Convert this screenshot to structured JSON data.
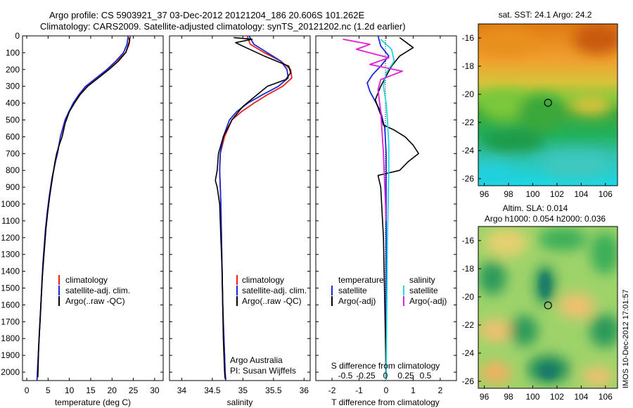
{
  "figure": {
    "title_line1": "Argo profile: CS 5903921_37 03-Dec-2012 20121204_186 20.606S 101.262E",
    "title_line2": "Climatology: CARS2009. Satellite-adjusted climatology: synTS_20121202.nc (1.2d earlier)",
    "timestamp": "IMOS 10-Dec-2012 17:01:57"
  },
  "colors": {
    "climatology": "#e8231f",
    "satellite": "#1a2bd6",
    "argo": "#000000",
    "s_satellite": "#1fd8e0",
    "s_argo": "#e020d8"
  },
  "chart_data": [
    {
      "id": "temperature",
      "type": "line",
      "xlabel": "temperature (deg C)",
      "xlim": [
        -1,
        32
      ],
      "xticks": [
        0,
        5,
        10,
        15,
        20,
        25,
        30
      ],
      "xticklabels": [
        "0",
        "5",
        "10",
        "15",
        "20",
        "25",
        "30"
      ],
      "ylim": [
        0,
        2050
      ],
      "yticks": [
        0,
        100,
        200,
        300,
        400,
        500,
        600,
        700,
        800,
        900,
        1000,
        1100,
        1200,
        1300,
        1400,
        1500,
        1600,
        1700,
        1800,
        1900,
        2000
      ],
      "legend": [
        "climatology",
        "satellite-adj. clim.",
        "Argo(..raw -QC)"
      ],
      "series": [
        {
          "name": "climatology",
          "color_key": "climatology",
          "x": [
            24.3,
            24.0,
            23.2,
            21.0,
            19.0,
            16.5,
            14.0,
            12.3,
            11.0,
            9.9,
            9.0,
            7.9,
            7.2,
            6.7,
            5.9,
            5.3,
            4.8,
            4.4,
            4.1,
            3.8,
            3.6,
            3.4,
            3.2,
            3.0,
            2.8,
            2.6,
            2.4
          ],
          "y": [
            0,
            50,
            100,
            150,
            200,
            250,
            300,
            350,
            400,
            450,
            500,
            600,
            700,
            750,
            850,
            950,
            1050,
            1150,
            1250,
            1350,
            1450,
            1550,
            1650,
            1750,
            1850,
            1950,
            2050
          ]
        },
        {
          "name": "satellite-adj. clim.",
          "color_key": "satellite",
          "x": [
            23.8,
            23.5,
            22.7,
            20.9,
            18.8,
            16.3,
            13.8,
            12.2,
            10.9,
            9.9,
            9.0,
            7.9,
            7.2,
            6.7,
            5.9,
            5.3,
            4.8,
            4.4,
            4.1,
            3.8,
            3.6,
            3.4,
            3.2,
            3.0,
            2.8,
            2.6,
            2.4
          ],
          "y": [
            0,
            50,
            100,
            150,
            200,
            250,
            300,
            350,
            400,
            450,
            500,
            600,
            700,
            750,
            850,
            950,
            1050,
            1150,
            1250,
            1350,
            1450,
            1550,
            1650,
            1750,
            1850,
            1950,
            2050
          ]
        },
        {
          "name": "Argo(..raw -QC)",
          "color_key": "argo",
          "x": [
            24.0,
            24.1,
            23.6,
            23.2,
            21.5,
            19.3,
            16.8,
            14.3,
            12.5,
            11.2,
            10.0,
            9.0,
            8.3,
            7.6,
            7.0,
            6.6,
            6.0,
            5.4,
            4.9,
            4.5,
            4.2,
            3.9,
            3.6,
            3.4,
            3.2,
            3.0,
            2.8,
            2.7,
            2.6
          ],
          "y": [
            10,
            30,
            70,
            100,
            150,
            200,
            250,
            300,
            350,
            400,
            450,
            520,
            600,
            650,
            700,
            750,
            850,
            950,
            1050,
            1150,
            1250,
            1350,
            1450,
            1550,
            1650,
            1750,
            1850,
            1950,
            2030
          ]
        }
      ]
    },
    {
      "id": "salinity",
      "type": "line",
      "xlabel": "salinity",
      "xlim": [
        33.8,
        36.1
      ],
      "xticks": [
        34,
        34.5,
        35,
        35.5,
        36
      ],
      "xticklabels": [
        "34",
        "34.5",
        "35",
        "35.5",
        "36"
      ],
      "ylim": [
        0,
        2050
      ],
      "legend": [
        "climatology",
        "satellite-adj. clim.",
        "Argo(..raw -QC)"
      ],
      "annotation_line1": "Argo Australia",
      "annotation_line2": "PI: Susan Wijffels",
      "series": [
        {
          "name": "climatology",
          "color_key": "climatology",
          "x": [
            35.07,
            35.12,
            35.35,
            35.62,
            35.78,
            35.8,
            35.65,
            35.4,
            35.18,
            34.98,
            34.82,
            34.7,
            34.63,
            34.62,
            34.63,
            34.64,
            34.65,
            34.66,
            34.67,
            34.68,
            34.69,
            34.7,
            34.71,
            34.72
          ],
          "y": [
            0,
            50,
            100,
            150,
            200,
            250,
            300,
            350,
            400,
            450,
            500,
            600,
            700,
            800,
            900,
            1000,
            1200,
            1400,
            1600,
            1700,
            1800,
            1900,
            2000,
            2050
          ]
        },
        {
          "name": "satellite-adj. clim.",
          "color_key": "satellite",
          "x": [
            35.1,
            35.18,
            35.4,
            35.62,
            35.72,
            35.74,
            35.58,
            35.32,
            35.08,
            34.9,
            34.78,
            34.68,
            34.63,
            34.62,
            34.63,
            34.64,
            34.65,
            34.66,
            34.67,
            34.68,
            34.69,
            34.7,
            34.71,
            34.72
          ],
          "y": [
            0,
            50,
            100,
            150,
            200,
            250,
            300,
            350,
            400,
            450,
            500,
            600,
            700,
            800,
            900,
            1000,
            1200,
            1400,
            1600,
            1700,
            1800,
            1900,
            2000,
            2050
          ]
        },
        {
          "name": "Argo(..raw -QC)",
          "color_key": "argo",
          "x": [
            34.85,
            35.15,
            34.88,
            35.05,
            35.35,
            35.75,
            35.78,
            35.7,
            35.4,
            35.2,
            35.0,
            34.82,
            34.68,
            34.6,
            34.58,
            34.55,
            34.58,
            34.62,
            34.64,
            34.66,
            34.67,
            34.68,
            34.69,
            34.7,
            34.71
          ],
          "y": [
            10,
            20,
            40,
            70,
            120,
            180,
            220,
            260,
            300,
            360,
            420,
            500,
            600,
            700,
            800,
            860,
            900,
            1000,
            1200,
            1400,
            1600,
            1800,
            1900,
            2000,
            2040
          ]
        }
      ]
    },
    {
      "id": "difference",
      "type": "line",
      "xlabel": "T difference from climatology",
      "xlabel_top": "S difference from climatology",
      "xlim": [
        -2.6,
        2.6
      ],
      "xticks": [
        -2,
        -1,
        0,
        1,
        2
      ],
      "xticklabels": [
        "-2",
        "-1",
        "0",
        "1",
        "2"
      ],
      "s_ticklabels": [
        "-0.5",
        "-0.25",
        "0",
        "0.25",
        "0.5"
      ],
      "ylim": [
        0,
        2050
      ],
      "legend_temperature_title": "temperature",
      "legend_salinity_title": "salinity",
      "legend": [
        "satellite",
        "Argo(-adj)",
        "satellite",
        "Argo(-adj)"
      ],
      "series": [
        {
          "name": "satellite",
          "color_key": "satellite",
          "x": [
            -0.3,
            -0.2,
            0.1,
            -0.2,
            -0.5,
            -0.7,
            -0.6,
            -0.4,
            -0.2,
            -0.05,
            0.0,
            0.0,
            0.0,
            0.0
          ],
          "y": [
            0,
            60,
            120,
            180,
            230,
            280,
            330,
            390,
            450,
            550,
            700,
            1000,
            1500,
            2050
          ]
        },
        {
          "name": "Argo(-adj)",
          "color_key": "argo",
          "x": [
            0.5,
            1.0,
            0.5,
            0.2,
            0.0,
            -0.2,
            -0.4,
            -0.2,
            -0.1,
            0.3,
            0.7,
            1.0,
            1.2,
            0.8,
            0.5,
            -0.3,
            -0.2,
            -0.1,
            -0.05,
            0.0
          ],
          "y": [
            10,
            70,
            120,
            180,
            240,
            300,
            380,
            470,
            530,
            560,
            600,
            650,
            700,
            750,
            800,
            830,
            900,
            1200,
            1600,
            2030
          ]
        },
        {
          "name": "satellite",
          "color_key": "s_satellite",
          "x": [
            -0.2,
            0.2,
            0.3,
            0.0,
            -0.1,
            0.0,
            0.05,
            0.1,
            0.1,
            0.05,
            0.0
          ],
          "y": [
            20,
            80,
            150,
            220,
            300,
            400,
            500,
            650,
            800,
            1200,
            2050
          ]
        },
        {
          "name": "Argo(-adj)",
          "color_key": "s_argo",
          "x": [
            -1.6,
            -0.6,
            -1.1,
            0.1,
            -0.6,
            0.6,
            -0.2,
            -0.3,
            -0.2,
            -0.1,
            -0.05,
            0.0
          ],
          "y": [
            20,
            50,
            80,
            130,
            170,
            210,
            260,
            320,
            450,
            700,
            900,
            1100
          ]
        }
      ]
    },
    {
      "id": "sst_map",
      "type": "heatmap",
      "title": "sat. SST: 24.1  Argo: 24.2",
      "xlim": [
        95.5,
        107
      ],
      "ylim": [
        -26.5,
        -15
      ],
      "xticks": [
        96,
        98,
        100,
        102,
        104,
        106
      ],
      "xticklabels": [
        "96",
        "98",
        "100",
        "102",
        "104",
        "106"
      ],
      "yticks": [
        -16,
        -18,
        -20,
        -22,
        -24,
        -26
      ],
      "yticklabels": [
        "-16",
        "-18",
        "-20",
        "-22",
        "-24",
        "-26"
      ],
      "marker": {
        "lon": 101.262,
        "lat": -20.606
      }
    },
    {
      "id": "sla_map",
      "type": "heatmap",
      "title_line1": "Altim. SLA: 0.014",
      "title_line2": "Argo h1000: 0.054 h2000: 0.036",
      "xlim": [
        95.5,
        107
      ],
      "ylim": [
        -26.5,
        -15
      ],
      "xticks": [
        96,
        98,
        100,
        102,
        104,
        106
      ],
      "xticklabels": [
        "96",
        "98",
        "100",
        "102",
        "104",
        "106"
      ],
      "yticks": [
        -16,
        -18,
        -20,
        -22,
        -24,
        -26
      ],
      "yticklabels": [
        "-16",
        "-18",
        "-20",
        "-22",
        "-24",
        "-26"
      ],
      "marker": {
        "lon": 101.262,
        "lat": -20.606
      }
    }
  ]
}
